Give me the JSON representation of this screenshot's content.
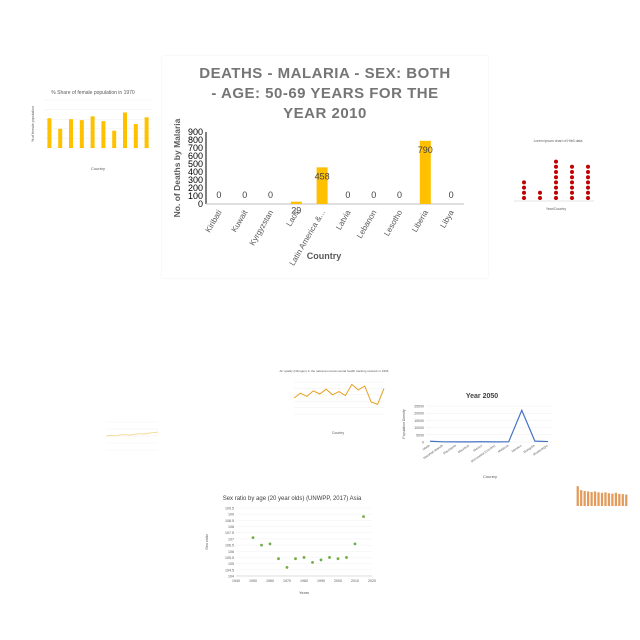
{
  "colors": {
    "gold": "#ffc000",
    "gold_dark": "#e5a800",
    "red": "#c00000",
    "blue": "#4472c4",
    "green": "#70ad47",
    "orange_line": "#e5a020",
    "text": "#595959",
    "title": "#757575",
    "grid": "#d9d9d9"
  },
  "chart_data": [
    {
      "id": "malaria",
      "type": "bar",
      "title_lines": [
        "DEATHS - MALARIA - SEX: BOTH",
        "- AGE: 50-69 YEARS FOR THE",
        "YEAR 2010"
      ],
      "categories": [
        "Kiribati",
        "Kuwait",
        "Kyrgyzstan",
        "Laos",
        "Latin America &...",
        "Latvia",
        "Lebanon",
        "Lesotho",
        "Liberia",
        "Libya"
      ],
      "values": [
        0,
        0,
        0,
        29,
        458,
        0,
        0,
        0,
        790,
        0
      ],
      "value_labels": [
        "0",
        "0",
        "0",
        "29",
        "458",
        "0",
        "0",
        "0",
        "790",
        "0"
      ],
      "ylim": [
        0,
        900
      ],
      "yticks": [
        "0",
        "100",
        "200",
        "300",
        "400",
        "500",
        "600",
        "700",
        "800",
        "900"
      ],
      "xlabel": "Country",
      "ylabel": "No. of Deaths by Malaria"
    },
    {
      "id": "female-pop",
      "type": "bar",
      "title": "% Share of female population in 1970",
      "values": [
        0.62,
        0.4,
        0.6,
        0.58,
        0.66,
        0.56,
        0.36,
        0.74,
        0.5,
        0.64
      ],
      "xlabel": "Country",
      "ylabel": "% of female population"
    },
    {
      "id": "red-dots",
      "type": "scatter",
      "title": "Lorem ipsum chart of Hib3 data",
      "columns": [
        4,
        2,
        8,
        7,
        7
      ],
      "xlabel": "Year/Country"
    },
    {
      "id": "air-quality",
      "type": "line",
      "title": "Air quality (Nitrogen) in the national environmental health tracking network in 1996",
      "values": [
        40,
        52,
        44,
        58,
        50,
        62,
        48,
        56,
        46,
        74,
        60,
        70,
        30,
        24,
        64
      ],
      "xlabel": "Country"
    },
    {
      "id": "year-2050",
      "type": "line",
      "title": "Year 2050",
      "categories": [
        "Malta",
        "Marshall Islands",
        "Mauritania",
        "Mauritius",
        "Mexico",
        "Micronesia (country)",
        "Moldova",
        "Monaco",
        "Mongolia",
        "Montenegro"
      ],
      "values": [
        500,
        120,
        80,
        90,
        160,
        110,
        130,
        22000,
        600,
        300
      ],
      "ylim": [
        0,
        25000
      ],
      "yticks": [
        "0",
        "5000",
        "10000",
        "15000",
        "20000",
        "25000"
      ],
      "xlabel": "Country",
      "ylabel": "Population Density"
    },
    {
      "id": "sex-ratio",
      "type": "scatter",
      "title": "Sex ratio by age (20 year olds) (UNWPP, 2017) Asia",
      "x": [
        1950,
        1955,
        1960,
        1965,
        1970,
        1975,
        1980,
        1985,
        1990,
        1995,
        2000,
        2005,
        2010,
        2015
      ],
      "values": [
        107.1,
        106.5,
        106.6,
        105.4,
        104.7,
        105.4,
        105.5,
        105.1,
        105.3,
        105.5,
        105.4,
        105.5,
        106.6,
        108.8
      ],
      "xlim": [
        1940,
        2020
      ],
      "ylim": [
        104,
        109.5
      ],
      "xticks": [
        "1940",
        "1950",
        "1960",
        "1970",
        "1980",
        "1990",
        "2000",
        "2010",
        "2020"
      ],
      "yticks": [
        "104",
        "104.5",
        "105",
        "105.5",
        "106",
        "106.5",
        "107",
        "107.5",
        "108",
        "108.5",
        "109",
        "109.5"
      ],
      "xlabel": "Years",
      "ylabel": "Sex ratio"
    },
    {
      "id": "faint-line",
      "type": "line",
      "values": [
        0.5,
        0.52,
        0.5,
        0.54,
        0.55,
        0.53,
        0.56,
        0.58,
        0.57,
        0.6,
        0.62,
        0.64
      ]
    },
    {
      "id": "orange-bars",
      "type": "bar",
      "values": [
        0.9,
        0.72,
        0.68,
        0.66,
        0.64,
        0.66,
        0.62,
        0.6,
        0.62,
        0.58,
        0.56,
        0.6,
        0.55,
        0.54,
        0.52
      ]
    }
  ]
}
